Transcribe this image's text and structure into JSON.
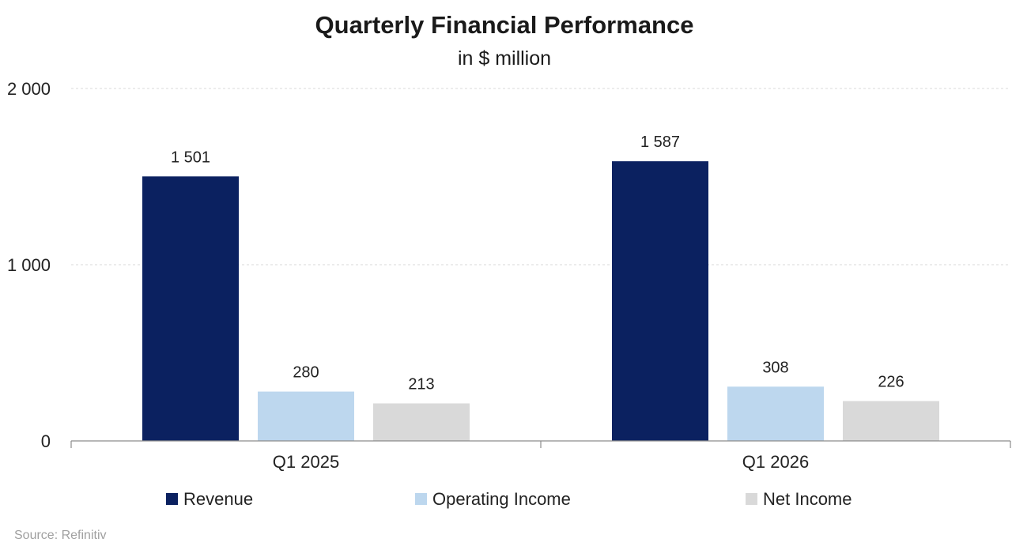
{
  "chart_data": {
    "type": "bar",
    "title": "Quarterly Financial Performance",
    "subtitle": "in $ million",
    "xlabel": "",
    "ylabel": "",
    "categories": [
      "Q1 2025",
      "Q1 2026"
    ],
    "series": [
      {
        "name": "Revenue",
        "values": [
          1501,
          1587
        ],
        "labels": [
          "1 501",
          "1 587"
        ],
        "color": "#0b2160"
      },
      {
        "name": "Operating Income",
        "values": [
          280,
          308
        ],
        "labels": [
          "280",
          "308"
        ],
        "color": "#bdd7ee"
      },
      {
        "name": "Net Income",
        "values": [
          213,
          226
        ],
        "labels": [
          "213",
          "226"
        ],
        "color": "#d9d9d9"
      }
    ],
    "ylim": [
      0,
      2000
    ],
    "yticks": [
      0,
      1000,
      2000
    ],
    "ytick_labels": [
      "0",
      "1 000",
      "2 000"
    ],
    "grid": true,
    "legend_position": "bottom"
  },
  "source": "Source: Refinitiv"
}
